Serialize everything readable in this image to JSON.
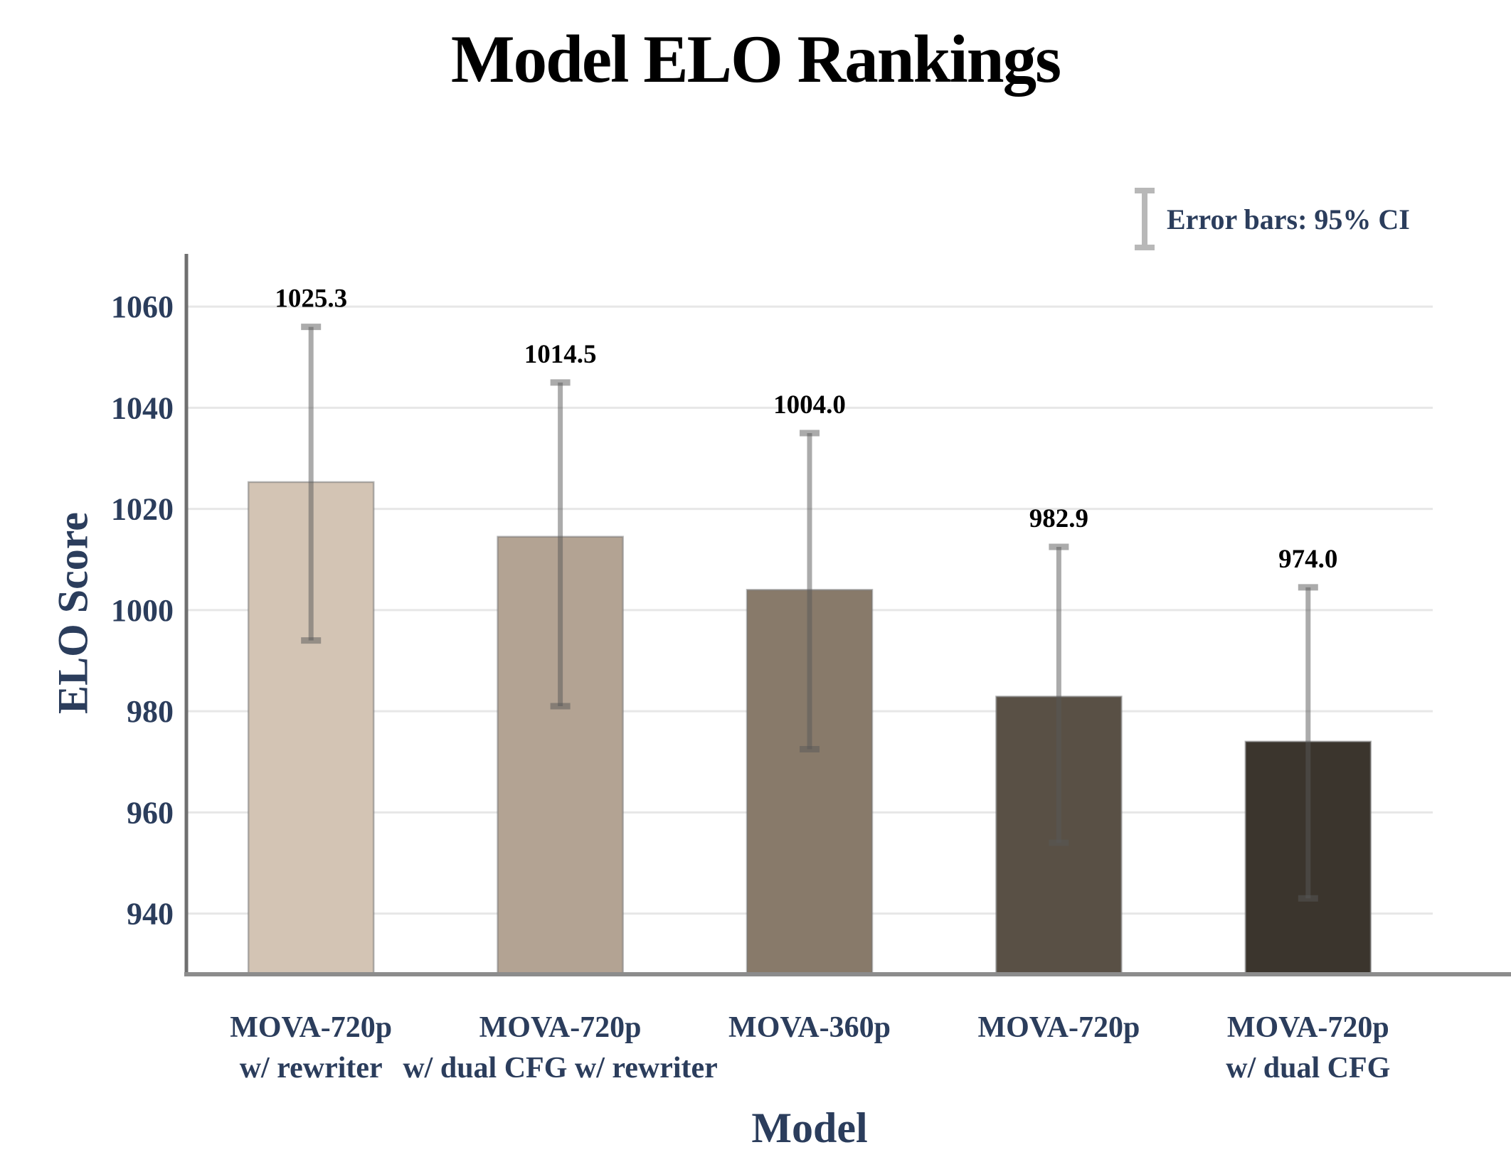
{
  "title": "Model ELO Rankings",
  "legend": {
    "label": "Error bars: 95% CI"
  },
  "chart_data": {
    "type": "bar",
    "title": "Model ELO Rankings",
    "xlabel": "Model",
    "ylabel": "ELO Score",
    "ylim": [
      928,
      1070
    ],
    "yticks": [
      940,
      960,
      980,
      1000,
      1020,
      1040,
      1060
    ],
    "grid": true,
    "legend_position": "top-right",
    "error_bar_note": "Error bars: 95% CI",
    "categories": [
      [
        "MOVA-720p",
        "w/ rewriter"
      ],
      [
        "MOVA-720p",
        "w/ dual CFG w/ rewriter"
      ],
      [
        "MOVA-360p"
      ],
      [
        "MOVA-720p"
      ],
      [
        "MOVA-720p",
        "w/ dual CFG"
      ]
    ],
    "values": [
      1025.3,
      1014.5,
      1004.0,
      982.9,
      974.0
    ],
    "values_text": [
      "1025.3",
      "1014.5",
      "1004.0",
      "982.9",
      "974.0"
    ],
    "ci_low": [
      994.0,
      981.0,
      972.5,
      954.0,
      943.0
    ],
    "ci_high": [
      1056.0,
      1045.0,
      1035.0,
      1012.5,
      1004.5
    ],
    "bar_colors": [
      "#d3c4b4",
      "#b3a393",
      "#887a6a",
      "#595045",
      "#3b352d"
    ]
  },
  "colors": {
    "text_navy": "#2b3d5c",
    "title_black": "#000000",
    "grid": "#e7e7e7",
    "axis_left": "#6f6f6f",
    "axis_bottom": "#8c8c8c",
    "error_bar": "rgba(88,88,88,0.5)",
    "bar_stroke": "rgba(120,120,120,0.55)",
    "legend_icon": "#b8b8b8",
    "value_label": "#000000"
  }
}
